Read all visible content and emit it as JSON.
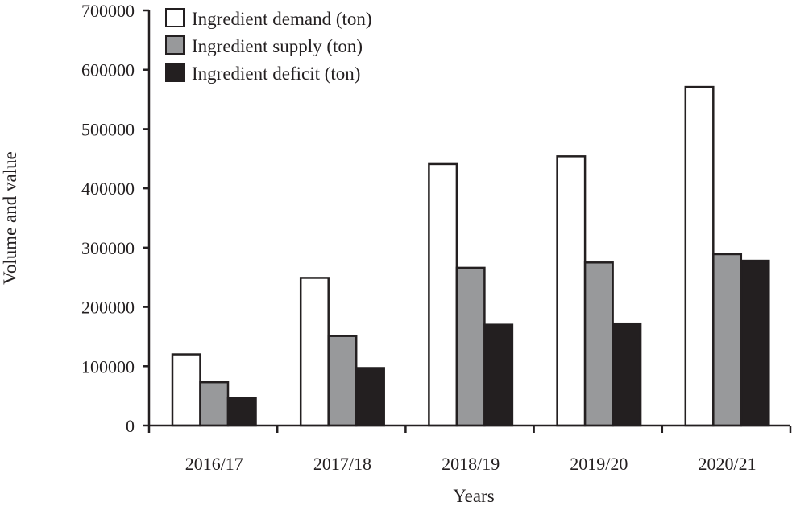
{
  "chart_data": {
    "type": "bar",
    "title": "",
    "xlabel": "Years",
    "ylabel": "Volume and value",
    "ylim": [
      0,
      700000
    ],
    "yticks": [
      "0",
      "100000",
      "200000",
      "300000",
      "400000",
      "500000",
      "600000",
      "700000"
    ],
    "categories": [
      "2016/17",
      "2017/18",
      "2018/19",
      "2019/20",
      "2020/21"
    ],
    "series": [
      {
        "name": "Ingredient demand (ton)",
        "color": "#ffffff",
        "values": [
          120000,
          249000,
          441000,
          454000,
          571000
        ]
      },
      {
        "name": "Ingredient supply (ton)",
        "color": "#98999b",
        "values": [
          73000,
          151000,
          266000,
          275000,
          289000
        ]
      },
      {
        "name": "Ingredient deficit (ton)",
        "color": "#231f20",
        "values": [
          47000,
          97000,
          170000,
          172000,
          278000
        ]
      }
    ],
    "grid": false,
    "legend": "top-left"
  }
}
